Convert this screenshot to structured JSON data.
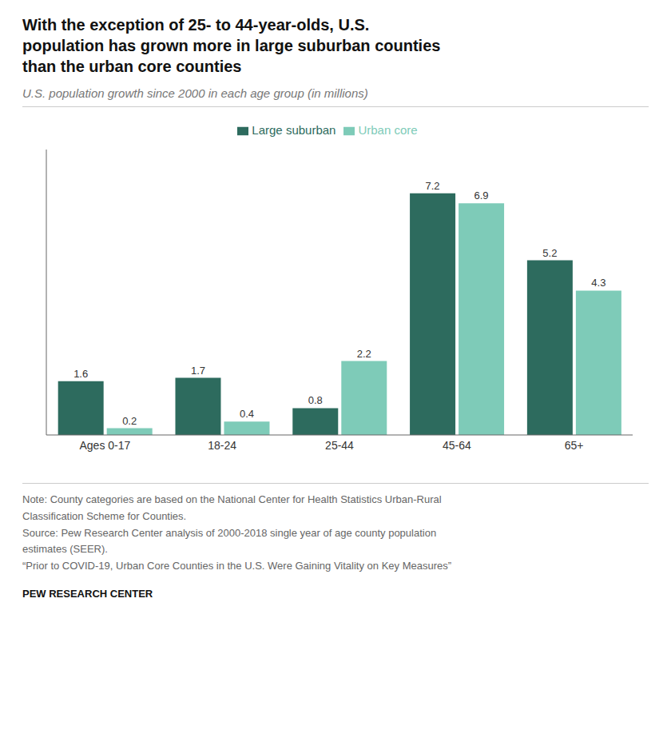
{
  "chart_data": {
    "type": "bar",
    "title": "With the exception of 25- to 44-year-olds, U.S.\npopulation has grown more in large suburban counties\nthan the urban core counties",
    "subtitle": "U.S. population growth since 2000 in each age group (in millions)",
    "categories": [
      "Ages 0-17",
      "18-24",
      "25-44",
      "45-64",
      "65+"
    ],
    "series": [
      {
        "name": "Large suburban",
        "color": "#2d6b5e",
        "values": [
          1.6,
          1.7,
          0.8,
          7.2,
          5.2
        ]
      },
      {
        "name": "Urban core",
        "color": "#7ecbb8",
        "values": [
          0.2,
          0.4,
          2.2,
          6.9,
          4.3
        ]
      }
    ],
    "ylim": [
      0,
      8.5
    ],
    "grid": false,
    "legend": "top",
    "data_labels": true,
    "tick_labels": "x",
    "notes": [
      "Note: County categories are based on the National Center for Health Statistics Urban-Rural",
      "Classification Scheme for Counties.",
      "Source: Pew Research Center analysis of 2000-2018 single year of age county population",
      "estimates (SEER).",
      "“Prior to COVID-19, Urban Core Counties in the U.S. Were Gaining Vitality on Key Measures”"
    ],
    "source": "PEW RESEARCH CENTER"
  }
}
